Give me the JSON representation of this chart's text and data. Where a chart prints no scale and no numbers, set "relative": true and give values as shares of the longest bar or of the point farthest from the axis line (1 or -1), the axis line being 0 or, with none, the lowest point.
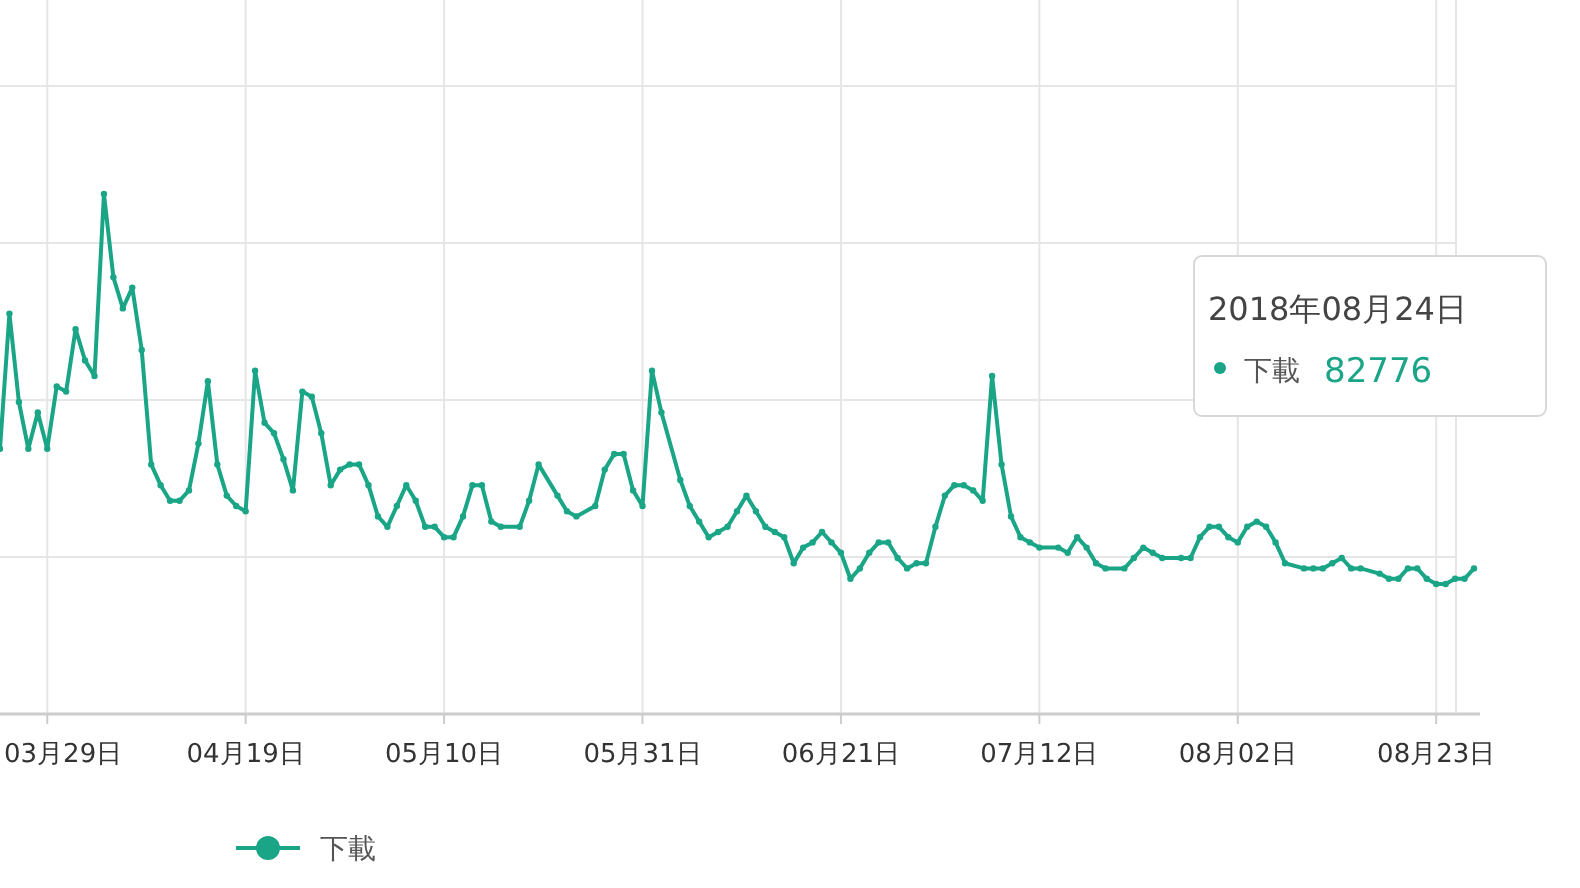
{
  "chart_data": {
    "type": "line",
    "relative": true,
    "x": [
      "--03-24",
      "--03-25",
      "--03-26",
      "--03-27",
      "--03-28",
      "--03-29",
      "--03-30",
      "--03-31",
      "--04-01",
      "--04-02",
      "--04-03",
      "--04-04",
      "--04-05",
      "--04-06",
      "--04-07",
      "--04-08",
      "--04-09",
      "--04-10",
      "--04-11",
      "--04-12",
      "--04-13",
      "--04-14",
      "--04-15",
      "--04-16",
      "--04-17",
      "--04-18",
      "--04-19",
      "--04-20",
      "--04-21",
      "--04-22",
      "--04-23",
      "--04-24",
      "--04-25",
      "--04-26",
      "--04-27",
      "--04-28",
      "--04-29",
      "--04-30",
      "--05-01",
      "--05-02",
      "--05-03",
      "--05-04",
      "--05-05",
      "--05-06",
      "--05-07",
      "--05-08",
      "--05-09",
      "--05-10",
      "--05-11",
      "--05-12",
      "--05-13",
      "--05-14",
      "--05-15",
      "--05-16",
      "--05-18",
      "--05-19",
      "--05-20",
      "--05-22",
      "--05-23",
      "--05-24",
      "--05-26",
      "--05-27",
      "--05-28",
      "--05-29",
      "--05-30",
      "--05-31",
      "--06-01",
      "--06-02",
      "--06-04",
      "--06-05",
      "--06-06",
      "--06-07",
      "--06-08",
      "--06-09",
      "--06-10",
      "--06-11",
      "--06-12",
      "--06-13",
      "--06-14",
      "--06-15",
      "--06-16",
      "--06-17",
      "--06-18",
      "--06-19",
      "--06-20",
      "--06-21",
      "--06-22",
      "--06-23",
      "--06-24",
      "--06-25",
      "--06-26",
      "--06-27",
      "--06-28",
      "--06-29",
      "--06-30",
      "--07-01",
      "--07-02",
      "--07-03",
      "--07-04",
      "--07-05",
      "--07-06",
      "--07-07",
      "--07-08",
      "--07-09",
      "--07-10",
      "--07-11",
      "--07-12",
      "--07-14",
      "--07-15",
      "--07-16",
      "--07-17",
      "--07-18",
      "--07-19",
      "--07-21",
      "--07-22",
      "--07-23",
      "--07-24",
      "--07-25",
      "--07-27",
      "--07-28",
      "--07-29",
      "--07-30",
      "--07-31",
      "--08-01",
      "--08-02",
      "--08-03",
      "--08-04",
      "--08-05",
      "--08-06",
      "--08-07",
      "--08-09",
      "--08-10",
      "--08-11",
      "--08-12",
      "--08-13",
      "--08-14",
      "--08-15",
      "--08-17",
      "--08-18",
      "--08-19",
      "--08-20",
      "--08-21",
      "--08-22",
      "--08-23",
      "--08-24",
      "--08-25",
      "--08-26",
      "--08-27"
    ],
    "series": [
      {
        "name": "下載",
        "color": "#1aa587",
        "values": [
          0.51,
          0.77,
          0.6,
          0.51,
          0.58,
          0.51,
          0.63,
          0.62,
          0.74,
          0.68,
          0.65,
          1.0,
          0.84,
          0.78,
          0.82,
          0.7,
          0.48,
          0.44,
          0.41,
          0.41,
          0.43,
          0.52,
          0.64,
          0.48,
          0.42,
          0.4,
          0.39,
          0.66,
          0.56,
          0.54,
          0.49,
          0.43,
          0.62,
          0.61,
          0.54,
          0.44,
          0.47,
          0.48,
          0.48,
          0.44,
          0.38,
          0.36,
          0.4,
          0.44,
          0.41,
          0.36,
          0.36,
          0.34,
          0.34,
          0.38,
          0.44,
          0.44,
          0.37,
          0.36,
          0.36,
          0.41,
          0.48,
          0.42,
          0.39,
          0.38,
          0.4,
          0.47,
          0.5,
          0.5,
          0.43,
          0.4,
          0.66,
          0.58,
          0.45,
          0.4,
          0.37,
          0.34,
          0.35,
          0.36,
          0.39,
          0.42,
          0.39,
          0.36,
          0.35,
          0.34,
          0.29,
          0.32,
          0.33,
          0.35,
          0.33,
          0.31,
          0.26,
          0.28,
          0.31,
          0.33,
          0.33,
          0.3,
          0.28,
          0.29,
          0.29,
          0.36,
          0.42,
          0.44,
          0.44,
          0.43,
          0.41,
          0.65,
          0.48,
          0.38,
          0.34,
          0.33,
          0.32,
          0.32,
          0.31,
          0.34,
          0.32,
          0.29,
          0.28,
          0.28,
          0.3,
          0.32,
          0.31,
          0.3,
          0.3,
          0.3,
          0.34,
          0.36,
          0.36,
          0.34,
          0.33,
          0.36,
          0.37,
          0.36,
          0.33,
          0.29,
          0.28,
          0.28,
          0.28,
          0.29,
          0.3,
          0.28,
          0.28,
          0.27,
          0.26,
          0.26,
          0.28,
          0.28,
          0.26,
          0.25,
          0.25,
          0.26,
          0.26,
          0.28
        ]
      }
    ],
    "xlim": [
      "--03-24",
      "--08-27"
    ],
    "xticks": [
      {
        "value": "--03-29",
        "label": "03月29日"
      },
      {
        "value": "--04-19",
        "label": "04月19日"
      },
      {
        "value": "--05-10",
        "label": "05月10日"
      },
      {
        "value": "--05-31",
        "label": "05月31日"
      },
      {
        "value": "--06-21",
        "label": "06月21日"
      },
      {
        "value": "--07-12",
        "label": "07月12日"
      },
      {
        "value": "--08-02",
        "label": "08月02日"
      },
      {
        "value": "--08-23",
        "label": "08月23日"
      }
    ],
    "annotations": [
      "2018年08月24日",
      "下載",
      "82776"
    ],
    "grid": true,
    "legend": "bottom",
    "marker": "circle",
    "line_style": "solid"
  }
}
